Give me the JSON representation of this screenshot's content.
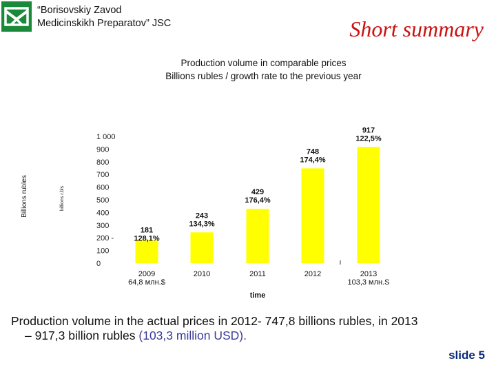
{
  "header": {
    "company_line1": "“Borisovskiy Zavod",
    "company_line2": "Medicinskikh Preparatov” JSC",
    "slide_title": "Short summary",
    "logo_icon": "company-logo-icon",
    "logo_color": "#1a8a3a"
  },
  "chart_data": {
    "type": "bar",
    "title": "Production volume in comparable prices",
    "subtitle": "Billions rubles / growth rate to the previous year",
    "xlabel": "time",
    "ylabel": "Billions rubles",
    "ylabel_inner": "billions r.bls",
    "ylim": [
      0,
      1000
    ],
    "yticks": [
      0,
      100,
      200,
      300,
      400,
      500,
      600,
      700,
      800,
      900,
      1000
    ],
    "ytick_labels": [
      "0",
      "100",
      "200 -",
      "300",
      "400",
      "500",
      "600",
      "700",
      "800",
      "900",
      "1 000"
    ],
    "categories": [
      "2009",
      "2010",
      "2011",
      "2012",
      "2013"
    ],
    "category_sublabels": [
      "64,8 млн.$",
      "",
      "",
      "",
      "103,3 млн.S"
    ],
    "values": [
      181,
      243,
      429,
      748,
      917
    ],
    "value_labels": [
      "181",
      "243",
      "429",
      "748",
      "917"
    ],
    "growth_labels": [
      "128,1%",
      "134,3%",
      "176,4%",
      "174,4%",
      "122,5%"
    ],
    "bar_color": "#ffff00",
    "grid": false,
    "legend": "none"
  },
  "summary": {
    "line1": "Production volume in the actual prices in 2012- 747,8 billions rubles, in 2013",
    "line2_prefix": "– 917,3 billion rubles ",
    "line2_usd": "(103,3 million USD).",
    "usd_color": "#3a3a9a"
  },
  "footer": {
    "slide_number": "slide 5",
    "slide_number_color": "#0a2a7a"
  }
}
